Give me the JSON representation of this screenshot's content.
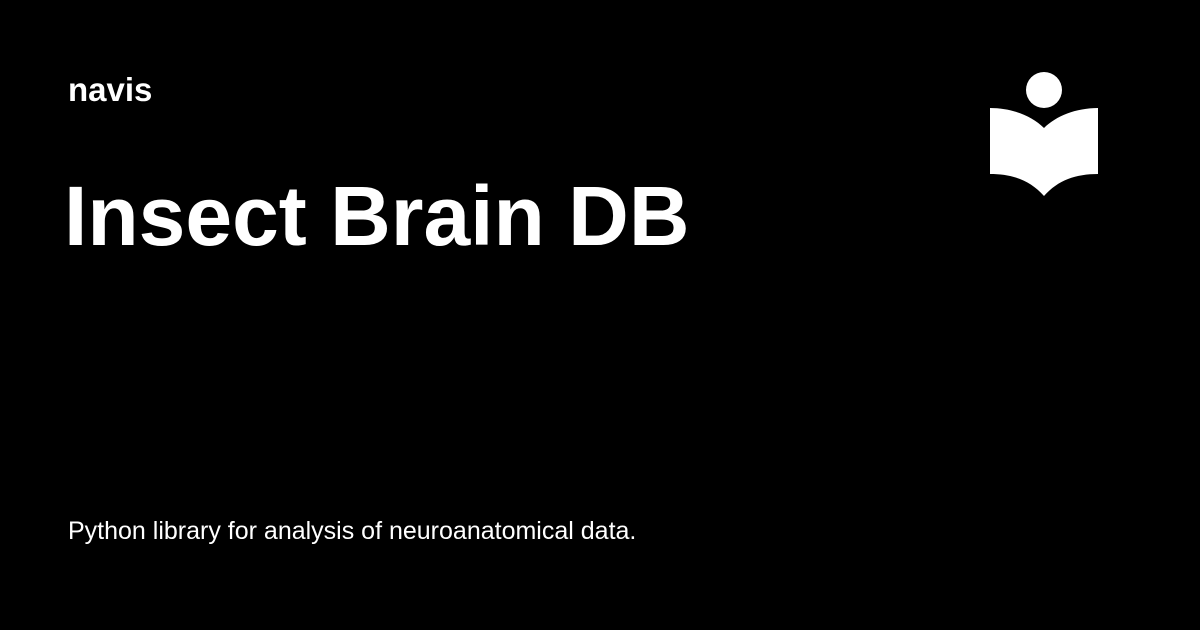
{
  "site": {
    "name": "navis"
  },
  "page": {
    "title": "Insect Brain DB",
    "description": "Python library for analysis of neuroanatomical data."
  },
  "logo": {
    "icon": "reader-book-icon"
  },
  "colors": {
    "background": "#000000",
    "text": "#ffffff"
  }
}
